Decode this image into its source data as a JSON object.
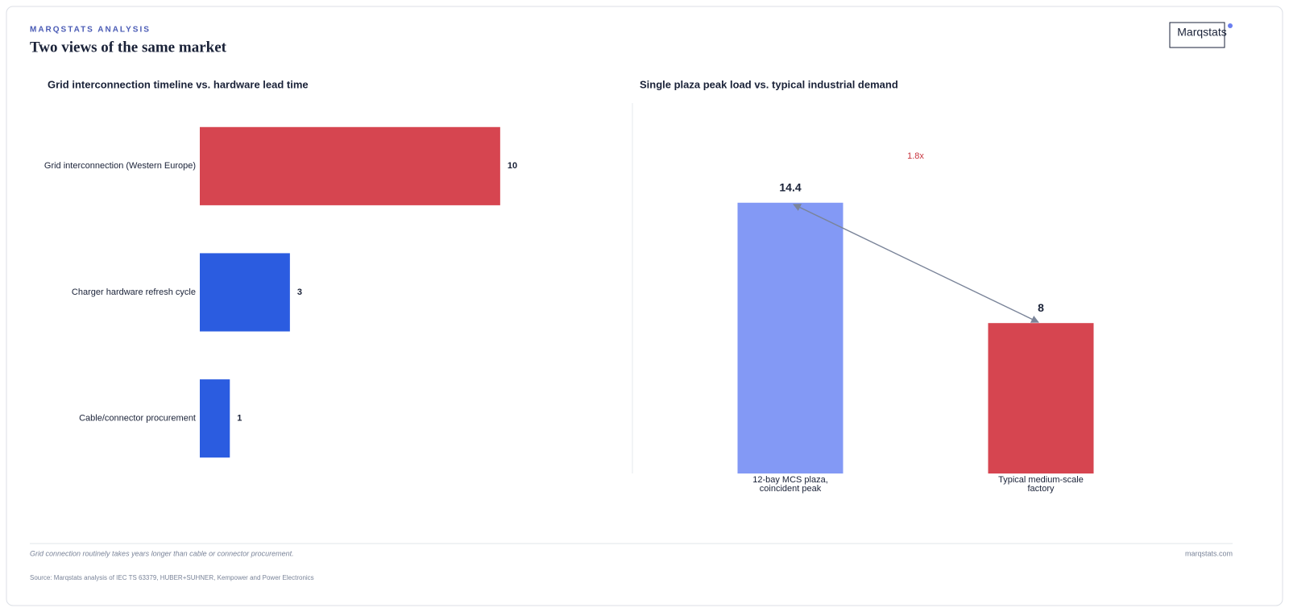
{
  "header": {
    "kicker": "MARQSTATS ANALYSIS",
    "title": "Two views of the same market",
    "logo": "Marqstats"
  },
  "chart_data": [
    {
      "type": "hbar",
      "title": "Grid interconnection timeline vs. hardware lead time",
      "categories": [
        "Grid interconnection (Western Europe)",
        "Charger hardware refresh cycle",
        "Cable/connector procurement"
      ],
      "values": [
        10,
        3,
        1
      ],
      "colors": [
        "#d64550",
        "#2b5ce0",
        "#2b5ce0"
      ],
      "xlim": [
        0,
        14
      ]
    },
    {
      "type": "bar",
      "title": "Single plaza peak load vs. typical industrial demand",
      "categories": [
        "12-bay MCS plaza, coincident peak",
        "Typical medium-scale factory"
      ],
      "values": [
        14.4,
        8
      ],
      "colors": [
        "#8399f5",
        "#d64550"
      ],
      "ylim": [
        0,
        20
      ],
      "annotation": "1.8x"
    }
  ],
  "footer": {
    "note": "Grid connection routinely takes years longer than cable or connector procurement.",
    "site": "marqstats.com",
    "source": "Source: Marqstats analysis of IEC TS 63379, HUBER+SUHNER, Kempower and Power Electronics"
  }
}
